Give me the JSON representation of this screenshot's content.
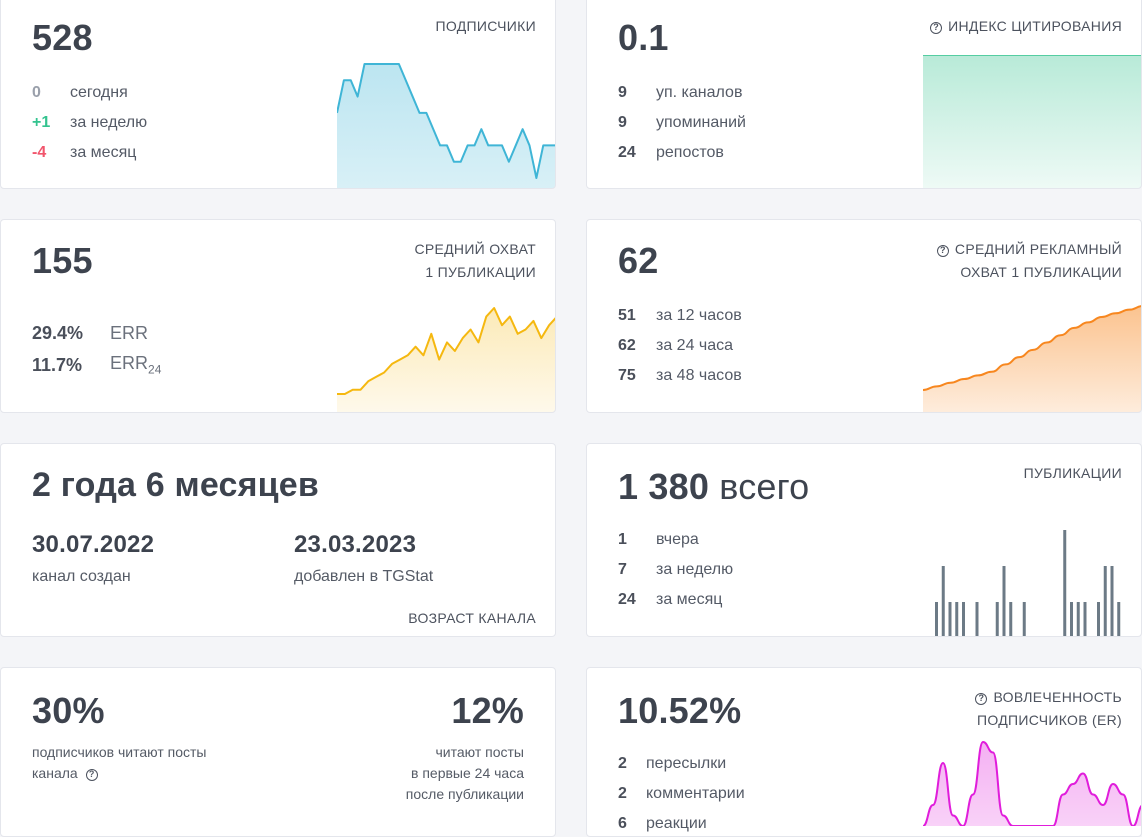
{
  "subscribers": {
    "value": "528",
    "label": "ПОДПИСЧИКИ",
    "rows": [
      {
        "num": "0",
        "text": "сегодня"
      },
      {
        "num": "+1",
        "text": "за неделю"
      },
      {
        "num": "-4",
        "text": "за месяц"
      }
    ]
  },
  "citation": {
    "value": "0.1",
    "label": "ИНДЕКС ЦИТИРОВАНИЯ",
    "rows": [
      {
        "num": "9",
        "text": "уп. каналов"
      },
      {
        "num": "9",
        "text": "упоминаний"
      },
      {
        "num": "24",
        "text": "репостов"
      }
    ]
  },
  "reach": {
    "value": "155",
    "label_line1": "СРЕДНИЙ ОХВАТ",
    "label_line2": "1 ПУБЛИКАЦИИ",
    "err_value": "29.4%",
    "err_label": "ERR",
    "err24_value": "11.7%",
    "err24_label": "ERR",
    "err24_sub": "24"
  },
  "ad_reach": {
    "value": "62",
    "label_line1": "СРЕДНИЙ РЕКЛАМНЫЙ",
    "label_line2": "ОХВАТ 1 ПУБЛИКАЦИИ",
    "rows": [
      {
        "num": "51",
        "text": "за 12 часов"
      },
      {
        "num": "62",
        "text": "за 24 часа"
      },
      {
        "num": "75",
        "text": "за 48 часов"
      }
    ]
  },
  "age": {
    "value": "2 года 6 месяцев",
    "created_date": "30.07.2022",
    "created_label": "канал создан",
    "added_date": "23.03.2023",
    "added_label": "добавлен в TGStat",
    "label": "ВОЗРАСТ КАНАЛА"
  },
  "posts": {
    "value": "1 380",
    "value_suffix": "всего",
    "label": "ПУБЛИКАЦИИ",
    "rows": [
      {
        "num": "1",
        "text": "вчера"
      },
      {
        "num": "7",
        "text": "за неделю"
      },
      {
        "num": "24",
        "text": "за месяц"
      }
    ]
  },
  "readers": {
    "left_value": "30%",
    "left_line1": "подписчиков читают посты",
    "left_line2": "канала",
    "right_value": "12%",
    "right_line1": "читают посты",
    "right_line2": "в первые 24 часа",
    "right_line3": "после публикации"
  },
  "engagement": {
    "value": "10.52%",
    "label_line1": "ВОВЛЕЧЕННОСТЬ",
    "label_line2": "ПОДПИСЧИКОВ (ER)",
    "rows": [
      {
        "num": "2",
        "text": "пересылки"
      },
      {
        "num": "2",
        "text": "комментарии"
      },
      {
        "num": "6",
        "text": "реакции"
      }
    ]
  },
  "colors": {
    "blue": "#3fb5d6",
    "green": "#34c38f",
    "yellow": "#f5b810",
    "orange": "#f7871f",
    "gray_bar": "#6c7a86",
    "magenta": "#e01ddb"
  },
  "chart_data": [
    {
      "type": "area",
      "name": "subscribers-sparkline",
      "values": [
        3,
        5,
        5,
        4,
        6,
        6,
        6,
        6,
        6,
        6,
        5,
        4,
        3,
        3,
        2,
        1,
        1,
        0,
        0,
        1,
        1,
        2,
        1,
        1,
        1,
        0,
        1,
        2,
        1,
        -1,
        1,
        1,
        1
      ]
    },
    {
      "type": "area",
      "name": "citation-sparkline",
      "values": [
        1,
        1,
        1,
        1,
        1,
        1,
        1,
        1,
        1,
        1
      ]
    },
    {
      "type": "area",
      "name": "reach-sparkline",
      "values": [
        0,
        0,
        1,
        1,
        3,
        4,
        5,
        7,
        8,
        9,
        11,
        9,
        14,
        8,
        12,
        10,
        13,
        15,
        12,
        18,
        20,
        16,
        18,
        14,
        15,
        17,
        13,
        16,
        18
      ]
    },
    {
      "type": "area",
      "name": "ad-reach-sparkline",
      "values": [
        8,
        10,
        12,
        14,
        16,
        18,
        22,
        26,
        30,
        34,
        38,
        42,
        45,
        48,
        50,
        52,
        54
      ]
    },
    {
      "type": "bar",
      "name": "posts-bars",
      "values": [
        1,
        2,
        1,
        1,
        1,
        0,
        1,
        0,
        0,
        1,
        2,
        1,
        0,
        1,
        0,
        0,
        0,
        0,
        0,
        3,
        1,
        1,
        1,
        0,
        1,
        2,
        2,
        1
      ]
    },
    {
      "type": "area",
      "name": "engagement-sparkline",
      "values": [
        0,
        2,
        6,
        1,
        0,
        3,
        8,
        7,
        1,
        0,
        0,
        0,
        0,
        0,
        3,
        4,
        5,
        3,
        2,
        4,
        3,
        0,
        2
      ]
    }
  ]
}
